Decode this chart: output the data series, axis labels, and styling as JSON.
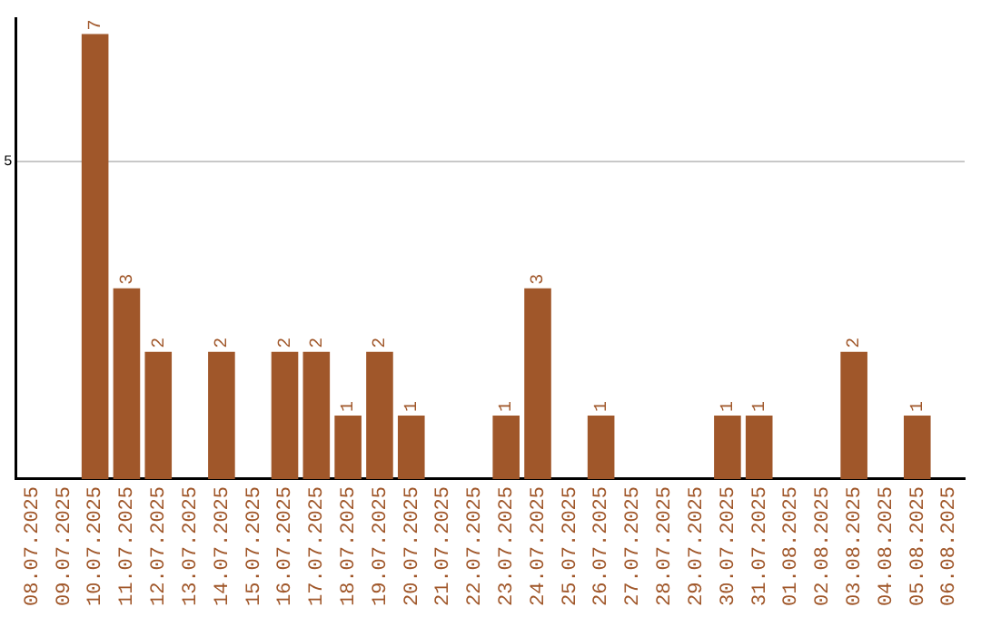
{
  "chart_data": {
    "type": "bar",
    "categories": [
      "08.07.2025",
      "09.07.2025",
      "10.07.2025",
      "11.07.2025",
      "12.07.2025",
      "13.07.2025",
      "14.07.2025",
      "15.07.2025",
      "16.07.2025",
      "17.07.2025",
      "18.07.2025",
      "19.07.2025",
      "20.07.2025",
      "21.07.2025",
      "22.07.2025",
      "23.07.2025",
      "24.07.2025",
      "25.07.2025",
      "26.07.2025",
      "27.07.2025",
      "28.07.2025",
      "29.07.2025",
      "30.07.2025",
      "31.07.2025",
      "01.08.2025",
      "02.08.2025",
      "03.08.2025",
      "04.08.2025",
      "05.08.2025",
      "06.08.2025"
    ],
    "values": [
      0,
      0,
      7,
      3,
      2,
      0,
      2,
      0,
      2,
      2,
      1,
      2,
      1,
      0,
      0,
      1,
      3,
      0,
      1,
      0,
      0,
      0,
      1,
      1,
      0,
      0,
      2,
      0,
      1,
      0
    ],
    "value_labels": [
      null,
      null,
      "7",
      "3",
      "2",
      null,
      "2",
      null,
      "2",
      "2",
      "1",
      "2",
      "1",
      null,
      null,
      "1",
      "3",
      null,
      "1",
      null,
      null,
      null,
      "1",
      "1",
      null,
      null,
      "2",
      null,
      "1",
      null
    ],
    "color": "#a0572a",
    "ylim": [
      0,
      7.25
    ],
    "yticks": [
      5
    ],
    "grid": "y",
    "legend": false
  }
}
